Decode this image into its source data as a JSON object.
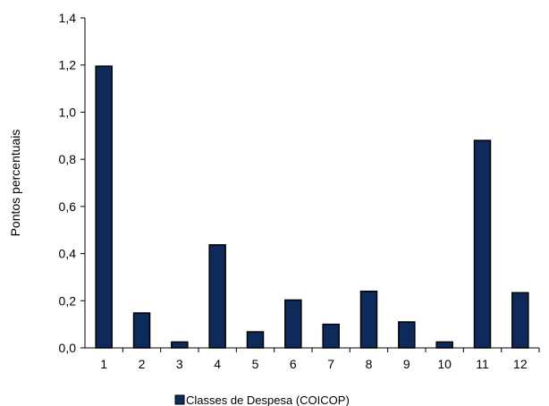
{
  "chart_data": {
    "type": "bar",
    "categories": [
      "1",
      "2",
      "3",
      "4",
      "5",
      "6",
      "7",
      "8",
      "9",
      "10",
      "11",
      "12"
    ],
    "series": [
      {
        "name": "Classes de Despesa (COICOP)",
        "values": [
          1.195,
          0.148,
          0.025,
          0.437,
          0.068,
          0.203,
          0.1,
          0.24,
          0.11,
          0.025,
          0.88,
          0.234
        ],
        "color": "#0d2a5a"
      }
    ],
    "title": "",
    "xlabel": "",
    "ylabel": "Pontos percentuais",
    "ylim": [
      0,
      1.4
    ],
    "yticks": [
      "0,0",
      "0,2",
      "0,4",
      "0,6",
      "0,8",
      "1,0",
      "1,2",
      "1,4"
    ],
    "grid": false,
    "legend": "bottom-center"
  }
}
